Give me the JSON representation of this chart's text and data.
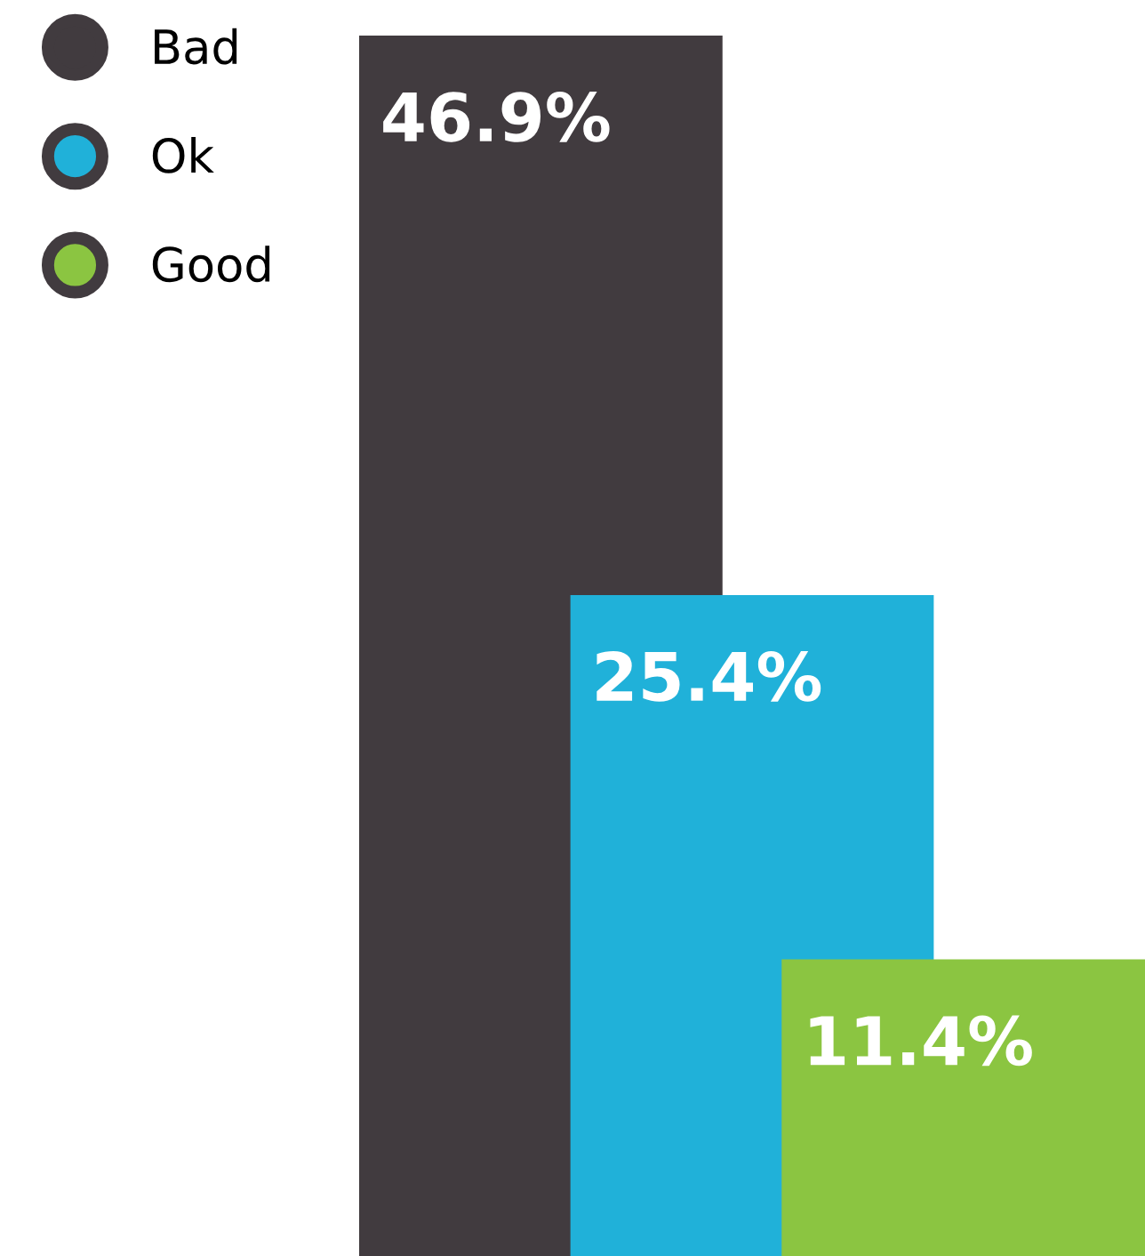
{
  "chart_data": {
    "type": "bar",
    "categories": [
      null,
      null,
      null
    ],
    "stacked": true,
    "series": [
      {
        "name": "Bad",
        "color": "#413b3f",
        "values": [
          46.9,
          null,
          null
        ],
        "value_labels": [
          "46.9%",
          null,
          null
        ]
      },
      {
        "name": "Ok",
        "color": "#20b1d9",
        "values": [
          null,
          25.4,
          null
        ],
        "value_labels": [
          null,
          "25.4%",
          null
        ]
      },
      {
        "name": "Good",
        "color": "#8bc541",
        "values": [
          null,
          null,
          11.4
        ],
        "value_labels": [
          null,
          null,
          "11.4%"
        ]
      }
    ],
    "legend": "top left"
  }
}
